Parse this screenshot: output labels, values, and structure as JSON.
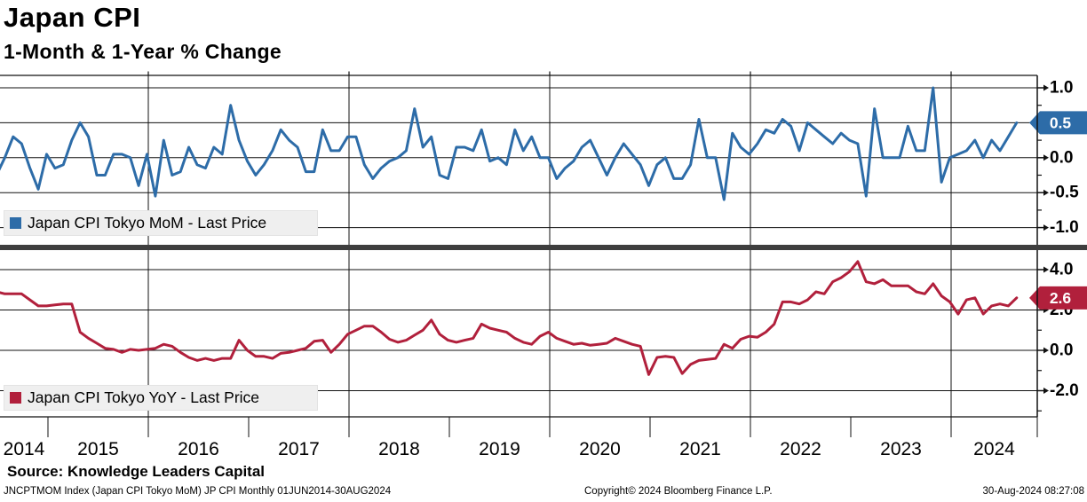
{
  "header": {
    "title": "Japan CPI",
    "subtitle": "1-Month & 1-Year % Change"
  },
  "legend_top": {
    "label": "Japan CPI Tokyo MoM - Last Price",
    "color": "#2d6ca8"
  },
  "legend_bottom": {
    "label": "Japan CPI Tokyo YoY - Last Price",
    "color": "#b1203c"
  },
  "axes": {
    "top": {
      "major_ticks": [
        {
          "label": "1.0",
          "value": 1.0
        },
        {
          "label": "0.5",
          "value": 0.5
        },
        {
          "label": "0.0",
          "value": 0.0
        },
        {
          "label": "-0.5",
          "value": -0.5
        },
        {
          "label": "-1.0",
          "value": -1.0
        }
      ],
      "minor_ticks": [
        0.75,
        0.25,
        -0.25,
        -0.75
      ],
      "badge": {
        "label": "0.5",
        "value": 0.5,
        "color": "#2d6ca8"
      }
    },
    "bottom": {
      "major_ticks": [
        {
          "label": "4.0",
          "value": 4.0
        },
        {
          "label": "2.0",
          "value": 2.0
        },
        {
          "label": "0.0",
          "value": 0.0
        },
        {
          "label": "-2.0",
          "value": -2.0
        }
      ],
      "minor_ticks": [
        3.0,
        1.0,
        -1.0,
        -3.0
      ],
      "badge": {
        "label": "2.6",
        "value": 2.6,
        "color": "#b1203c"
      }
    }
  },
  "x_axis": {
    "years": [
      "2014",
      "2015",
      "2016",
      "2017",
      "2018",
      "2019",
      "2020",
      "2021",
      "2022",
      "2023",
      "2024"
    ]
  },
  "source": "Source: Knowledge Leaders Capital",
  "footer": {
    "left": "JNCPTMOM Index (Japan CPI Tokyo MoM) JP CPI  Monthly 01JUN2014-30AUG2024",
    "center": "Copyright© 2024 Bloomberg Finance L.P.",
    "right": "30-Aug-2024 08:27:08"
  },
  "chart_data": [
    {
      "type": "line",
      "name": "Japan CPI Tokyo MoM - Last Price",
      "color": "#2d6ca8",
      "frequency": "monthly",
      "x_start": "2014-06",
      "x_end": "2024-08",
      "ylabel": "1-Month % Change",
      "ylim": [
        -1.25,
        1.15
      ],
      "yticks": [
        1.0,
        0.5,
        0.0,
        -0.5,
        -1.0
      ],
      "last_price": 0.5,
      "values": [
        -0.25,
        0.0,
        0.3,
        0.2,
        -0.15,
        -0.45,
        0.05,
        -0.15,
        -0.1,
        0.25,
        0.5,
        0.3,
        -0.25,
        -0.25,
        0.05,
        0.05,
        0.0,
        -0.4,
        0.05,
        -0.55,
        0.25,
        -0.25,
        -0.2,
        0.15,
        -0.1,
        -0.15,
        0.15,
        0.05,
        0.75,
        0.25,
        -0.05,
        -0.25,
        -0.1,
        0.1,
        0.4,
        0.25,
        0.15,
        -0.2,
        -0.2,
        0.4,
        0.1,
        0.1,
        0.3,
        0.3,
        -0.1,
        -0.3,
        -0.15,
        -0.05,
        0.0,
        0.1,
        0.7,
        0.15,
        0.3,
        -0.25,
        -0.3,
        0.15,
        0.15,
        0.1,
        0.4,
        -0.05,
        0.0,
        -0.1,
        0.4,
        0.1,
        0.3,
        0.0,
        0.0,
        -0.3,
        -0.15,
        -0.05,
        0.15,
        0.25,
        0.0,
        -0.25,
        0.0,
        0.2,
        0.05,
        -0.1,
        -0.4,
        -0.1,
        0.0,
        -0.3,
        -0.3,
        -0.1,
        0.55,
        0.0,
        0.0,
        -0.6,
        0.35,
        0.15,
        0.05,
        0.2,
        0.4,
        0.35,
        0.55,
        0.45,
        0.1,
        0.5,
        0.4,
        0.3,
        0.2,
        0.35,
        0.25,
        0.2,
        -0.55,
        0.7,
        0.0,
        0.0,
        0.0,
        0.45,
        0.1,
        0.1,
        1.0,
        -0.35,
        0.0,
        0.05,
        0.1,
        0.25,
        0.0,
        0.25,
        0.1,
        0.3,
        0.5
      ]
    },
    {
      "type": "line",
      "name": "Japan CPI Tokyo YoY - Last Price",
      "color": "#b1203c",
      "frequency": "monthly",
      "x_start": "2014-06",
      "x_end": "2024-08",
      "ylabel": "1-Year % Change",
      "ylim": [
        -3.3,
        5.2
      ],
      "yticks": [
        4.0,
        2.0,
        0.0,
        -2.0
      ],
      "last_price": 2.6,
      "values": [
        2.9,
        2.8,
        2.8,
        2.8,
        2.5,
        2.2,
        2.2,
        2.25,
        2.3,
        2.3,
        0.9,
        0.6,
        0.35,
        0.1,
        0.05,
        -0.1,
        0.05,
        0.0,
        0.05,
        0.1,
        0.3,
        0.2,
        -0.1,
        -0.35,
        -0.5,
        -0.4,
        -0.5,
        -0.4,
        -0.4,
        0.5,
        0.0,
        -0.3,
        -0.3,
        -0.4,
        -0.15,
        -0.1,
        0.0,
        0.1,
        0.45,
        0.5,
        -0.1,
        0.3,
        0.8,
        1.0,
        1.2,
        1.2,
        0.9,
        0.55,
        0.4,
        0.5,
        0.75,
        1.0,
        1.5,
        0.8,
        0.5,
        0.4,
        0.5,
        0.6,
        1.3,
        1.1,
        1.0,
        0.9,
        0.6,
        0.4,
        0.3,
        0.7,
        0.9,
        0.6,
        0.45,
        0.3,
        0.35,
        0.25,
        0.3,
        0.35,
        0.6,
        0.45,
        0.3,
        0.2,
        -1.2,
        -0.35,
        -0.3,
        -0.35,
        -1.15,
        -0.7,
        -0.5,
        -0.45,
        -0.4,
        0.3,
        0.1,
        0.55,
        0.7,
        0.65,
        0.9,
        1.3,
        2.4,
        2.4,
        2.3,
        2.5,
        2.9,
        2.8,
        3.4,
        3.6,
        3.9,
        4.4,
        3.4,
        3.3,
        3.5,
        3.2,
        3.2,
        3.2,
        2.9,
        2.8,
        3.3,
        2.7,
        2.4,
        1.8,
        2.5,
        2.6,
        1.8,
        2.2,
        2.3,
        2.2,
        2.6
      ]
    }
  ]
}
